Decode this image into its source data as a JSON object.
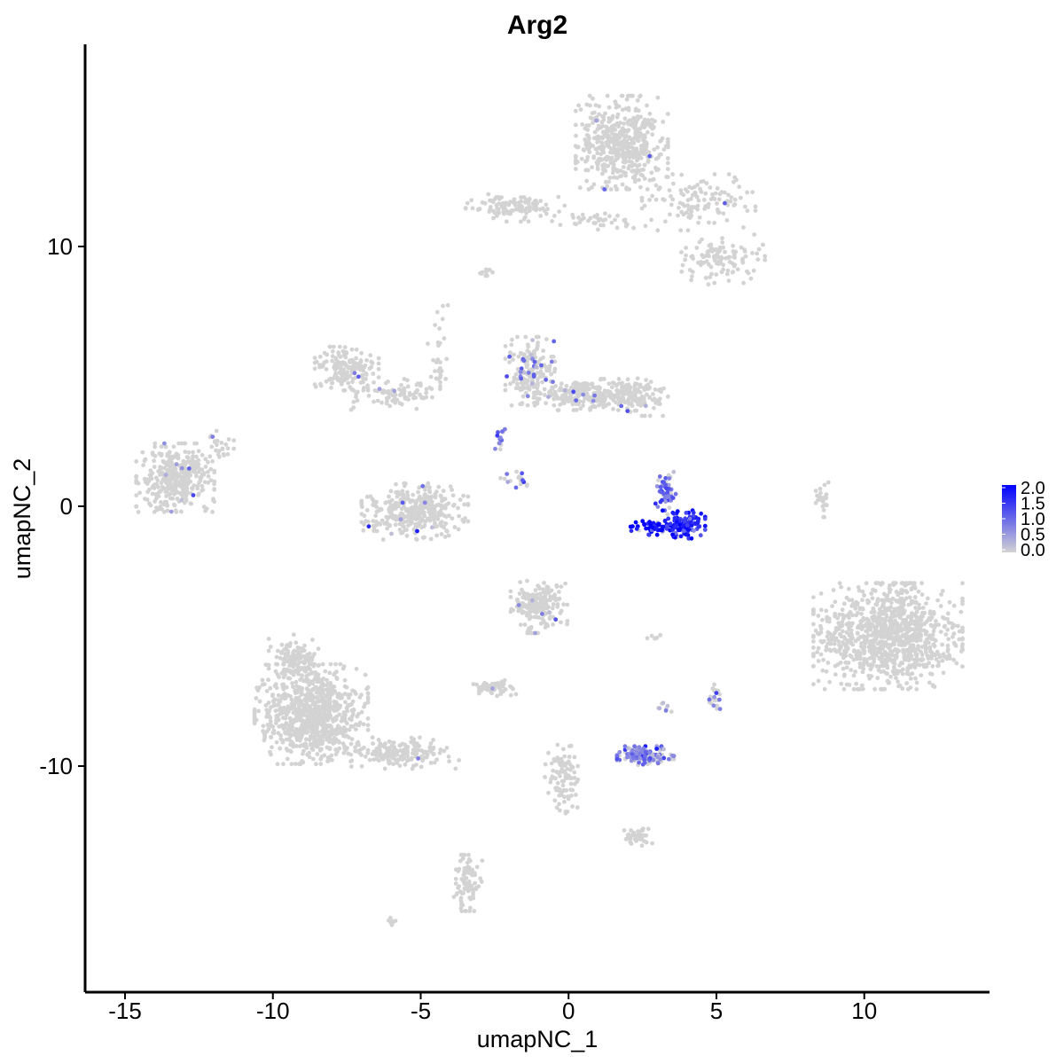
{
  "chart_data": {
    "type": "scatter",
    "title": "Arg2",
    "xlabel": "umapNC_1",
    "ylabel": "umapNC_2",
    "xlim": [
      -16.5,
      14.5
    ],
    "ylim": [
      -18.5,
      17.5
    ],
    "x_ticks": [
      -15,
      -10,
      -5,
      0,
      5,
      10
    ],
    "x_tick_labels": [
      "-15",
      "-10",
      "-5",
      "0",
      "5",
      "10"
    ],
    "y_ticks": [
      -10,
      0,
      10
    ],
    "y_tick_labels": [
      "-10",
      "0",
      "10"
    ],
    "grid": false,
    "legend": {
      "placement": "right",
      "labels": [
        "2.0",
        "1.5",
        "1.0",
        "0.5",
        "0.0"
      ],
      "values": [
        2.0,
        1.5,
        1.0,
        0.5,
        0.0
      ]
    },
    "color_scale": {
      "low": "#d3d3d3",
      "high": "#0000ff",
      "min": 0.0,
      "max": 2.0
    },
    "clusters": [
      {
        "name": "",
        "cx": 1.8,
        "cy": 14.0,
        "rx": 1.3,
        "ry": 1.5,
        "n": 520,
        "expr_frac": 0.01,
        "expr": 0.6
      },
      {
        "name": "",
        "cx": 4.4,
        "cy": 11.7,
        "rx": 1.6,
        "ry": 0.9,
        "n": 120,
        "expr_frac": 0.01,
        "expr": 0.6
      },
      {
        "name": "",
        "cx": 5.2,
        "cy": 9.5,
        "rx": 1.2,
        "ry": 0.8,
        "n": 110,
        "expr_frac": 0.0,
        "expr": 0.0
      },
      {
        "name": "",
        "cx": -1.8,
        "cy": 11.5,
        "rx": 1.4,
        "ry": 0.45,
        "n": 110,
        "expr_frac": 0.02,
        "expr": 0.8
      },
      {
        "name": "",
        "cx": 1.0,
        "cy": 11.0,
        "rx": 1.3,
        "ry": 0.3,
        "n": 40,
        "expr_frac": 0.0,
        "expr": 0.0
      },
      {
        "name": "",
        "cx": -13.3,
        "cy": 1.1,
        "rx": 1.1,
        "ry": 1.1,
        "n": 380,
        "expr_frac": 0.03,
        "expr": 0.7
      },
      {
        "name": "",
        "cx": -7.5,
        "cy": 5.3,
        "rx": 0.9,
        "ry": 0.7,
        "n": 170,
        "expr_frac": 0.01,
        "expr": 0.6
      },
      {
        "name": "",
        "cx": -5.9,
        "cy": 4.3,
        "rx": 1.3,
        "ry": 0.5,
        "n": 90,
        "expr_frac": 0.02,
        "expr": 0.6
      },
      {
        "name": "",
        "cx": -5.2,
        "cy": -0.2,
        "rx": 1.5,
        "ry": 0.9,
        "n": 360,
        "expr_frac": 0.02,
        "expr": 0.7
      },
      {
        "name": "",
        "cx": -1.3,
        "cy": 5.2,
        "rx": 0.7,
        "ry": 1.1,
        "n": 190,
        "expr_frac": 0.18,
        "expr": 0.9
      },
      {
        "name": "",
        "cx": 0.5,
        "cy": 4.3,
        "rx": 1.3,
        "ry": 0.5,
        "n": 230,
        "expr_frac": 0.03,
        "expr": 0.7
      },
      {
        "name": "",
        "cx": 2.3,
        "cy": 4.2,
        "rx": 0.9,
        "ry": 0.6,
        "n": 130,
        "expr_frac": 0.03,
        "expr": 0.7
      },
      {
        "name": "",
        "cx": 3.9,
        "cy": -0.7,
        "rx": 0.6,
        "ry": 0.45,
        "n": 130,
        "expr_frac": 0.9,
        "expr": 1.6
      },
      {
        "name": "",
        "cx": 2.8,
        "cy": -0.8,
        "rx": 0.6,
        "ry": 0.25,
        "n": 50,
        "expr_frac": 0.95,
        "expr": 1.9
      },
      {
        "name": "",
        "cx": 3.3,
        "cy": 0.6,
        "rx": 0.3,
        "ry": 0.6,
        "n": 55,
        "expr_frac": 0.7,
        "expr": 1.0
      },
      {
        "name": "",
        "cx": 10.8,
        "cy": -5.0,
        "rx": 2.1,
        "ry": 1.7,
        "n": 1000,
        "expr_frac": 0.0,
        "expr": 0.0
      },
      {
        "name": "",
        "cx": 8.6,
        "cy": 0.2,
        "rx": 0.2,
        "ry": 0.6,
        "n": 25,
        "expr_frac": 0.0,
        "expr": 0.0
      },
      {
        "name": "",
        "cx": -1.0,
        "cy": -3.8,
        "rx": 0.8,
        "ry": 0.9,
        "n": 200,
        "expr_frac": 0.02,
        "expr": 0.6
      },
      {
        "name": "",
        "cx": -8.7,
        "cy": -8.0,
        "rx": 1.6,
        "ry": 1.6,
        "n": 800,
        "expr_frac": 0.0,
        "expr": 0.0
      },
      {
        "name": "",
        "cx": -9.3,
        "cy": -5.9,
        "rx": 0.7,
        "ry": 0.8,
        "n": 120,
        "expr_frac": 0.0,
        "expr": 0.0
      },
      {
        "name": "",
        "cx": -5.6,
        "cy": -9.5,
        "rx": 1.6,
        "ry": 0.5,
        "n": 170,
        "expr_frac": 0.01,
        "expr": 0.8
      },
      {
        "name": "",
        "cx": -2.5,
        "cy": -7.0,
        "rx": 0.6,
        "ry": 0.25,
        "n": 55,
        "expr_frac": 0.02,
        "expr": 0.8
      },
      {
        "name": "",
        "cx": 2.6,
        "cy": -9.6,
        "rx": 0.8,
        "ry": 0.3,
        "n": 130,
        "expr_frac": 0.75,
        "expr": 0.8
      },
      {
        "name": "",
        "cx": -0.2,
        "cy": -10.5,
        "rx": 0.5,
        "ry": 1.1,
        "n": 90,
        "expr_frac": 0.0,
        "expr": 0.0
      },
      {
        "name": "",
        "cx": 2.3,
        "cy": -12.7,
        "rx": 0.5,
        "ry": 0.3,
        "n": 40,
        "expr_frac": 0.0,
        "expr": 0.0
      },
      {
        "name": "",
        "cx": 5.0,
        "cy": -7.4,
        "rx": 0.2,
        "ry": 0.45,
        "n": 25,
        "expr_frac": 0.2,
        "expr": 0.8
      },
      {
        "name": "",
        "cx": -3.4,
        "cy": -14.5,
        "rx": 0.4,
        "ry": 0.9,
        "n": 90,
        "expr_frac": 0.0,
        "expr": 0.0
      },
      {
        "name": "",
        "cx": -6.0,
        "cy": -16.0,
        "rx": 0.15,
        "ry": 0.15,
        "n": 8,
        "expr_frac": 0.0,
        "expr": 0.0
      },
      {
        "name": "",
        "cx": -2.8,
        "cy": 9.0,
        "rx": 0.3,
        "ry": 0.2,
        "n": 10,
        "expr_frac": 0.0,
        "expr": 0.0
      },
      {
        "name": "",
        "cx": 2.9,
        "cy": -5.0,
        "rx": 0.2,
        "ry": 0.1,
        "n": 6,
        "expr_frac": 0.0,
        "expr": 0.0
      },
      {
        "name": "",
        "cx": -2.3,
        "cy": 2.6,
        "rx": 0.15,
        "ry": 0.45,
        "n": 14,
        "expr_frac": 0.5,
        "expr": 1.0
      },
      {
        "name": "",
        "cx": -1.7,
        "cy": 1.0,
        "rx": 0.5,
        "ry": 0.3,
        "n": 18,
        "expr_frac": 0.3,
        "expr": 0.8
      },
      {
        "name": "",
        "cx": -4.4,
        "cy": 6.0,
        "rx": 0.3,
        "ry": 1.6,
        "n": 30,
        "expr_frac": 0.0,
        "expr": 0.0
      },
      {
        "name": "",
        "cx": -11.8,
        "cy": 2.3,
        "rx": 0.4,
        "ry": 0.5,
        "n": 25,
        "expr_frac": 0.05,
        "expr": 0.8
      },
      {
        "name": "",
        "cx": 3.2,
        "cy": -7.8,
        "rx": 0.3,
        "ry": 0.2,
        "n": 8,
        "expr_frac": 0.3,
        "expr": 0.6
      }
    ]
  }
}
